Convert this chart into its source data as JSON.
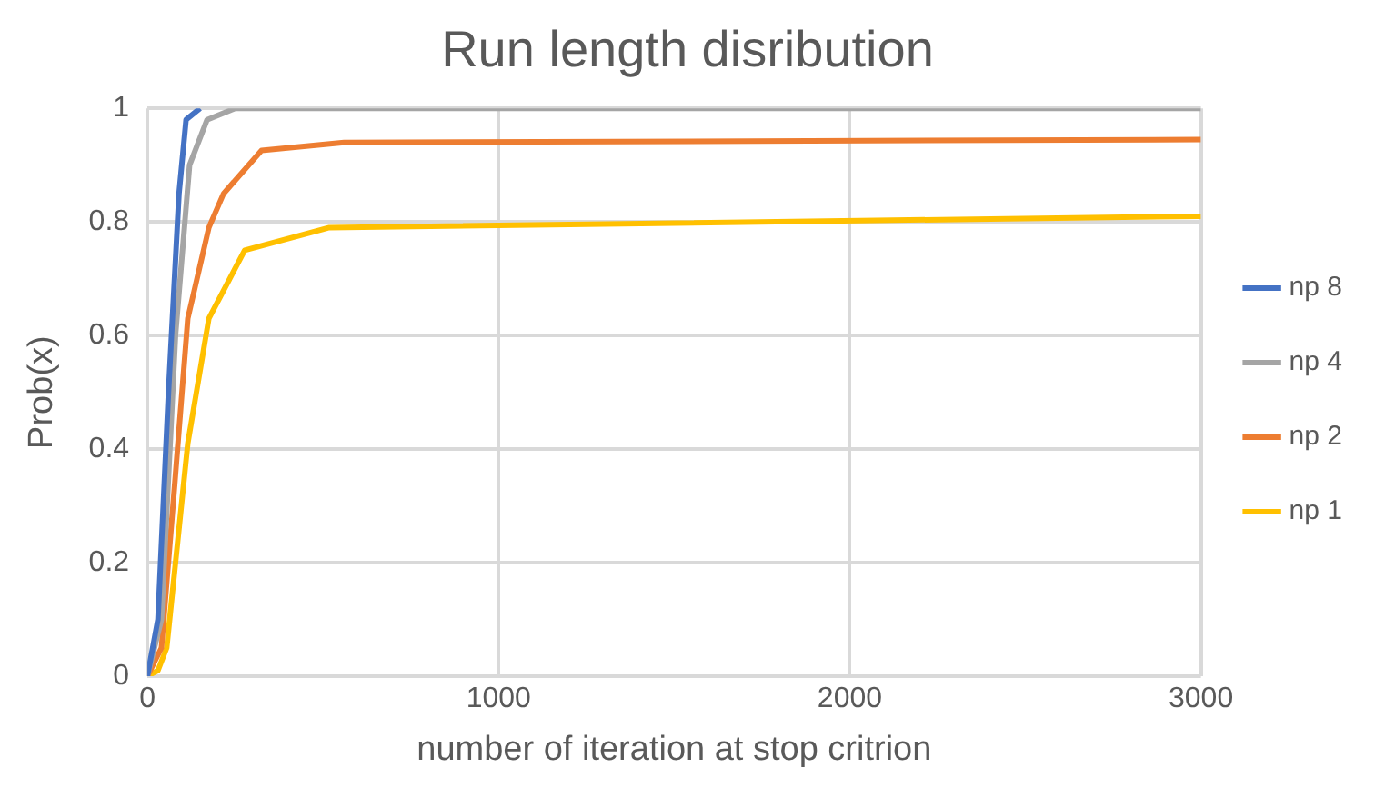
{
  "chart_data": {
    "type": "line",
    "title": "Run length disribution",
    "xlabel": "number of iteration at stop critrion",
    "ylabel": "Prob(x)",
    "xlim": [
      0,
      3000
    ],
    "xticks": [
      0,
      1000,
      2000,
      3000
    ],
    "ylim": [
      0,
      1
    ],
    "yticks": [
      0,
      0.2,
      0.4,
      0.6,
      0.8,
      1
    ],
    "grid": true,
    "legend": "right",
    "marker": "none",
    "series": [
      {
        "name": "np 8",
        "color": "#4472c4",
        "x": [
          0,
          30,
          60,
          90,
          110,
          150
        ],
        "values": [
          0,
          0.1,
          0.5,
          0.85,
          0.98,
          1
        ]
      },
      {
        "name": "np 4",
        "color": "#a5a5a5",
        "x": [
          0,
          40,
          80,
          120,
          170,
          250,
          3000
        ],
        "values": [
          0,
          0.1,
          0.6,
          0.9,
          0.98,
          1,
          1
        ]
      },
      {
        "name": "np 2",
        "color": "#ed7d31",
        "x": [
          0,
          40,
          78,
          115,
          175,
          217,
          325,
          560,
          3000
        ],
        "values": [
          0,
          0.05,
          0.34,
          0.63,
          0.79,
          0.85,
          0.926,
          0.94,
          0.945
        ]
      },
      {
        "name": "np 1",
        "color": "#ffc000",
        "x": [
          0,
          30,
          55,
          115,
          175,
          277,
          518,
          3000
        ],
        "values": [
          0,
          0.01,
          0.05,
          0.41,
          0.63,
          0.75,
          0.79,
          0.81
        ]
      }
    ]
  }
}
